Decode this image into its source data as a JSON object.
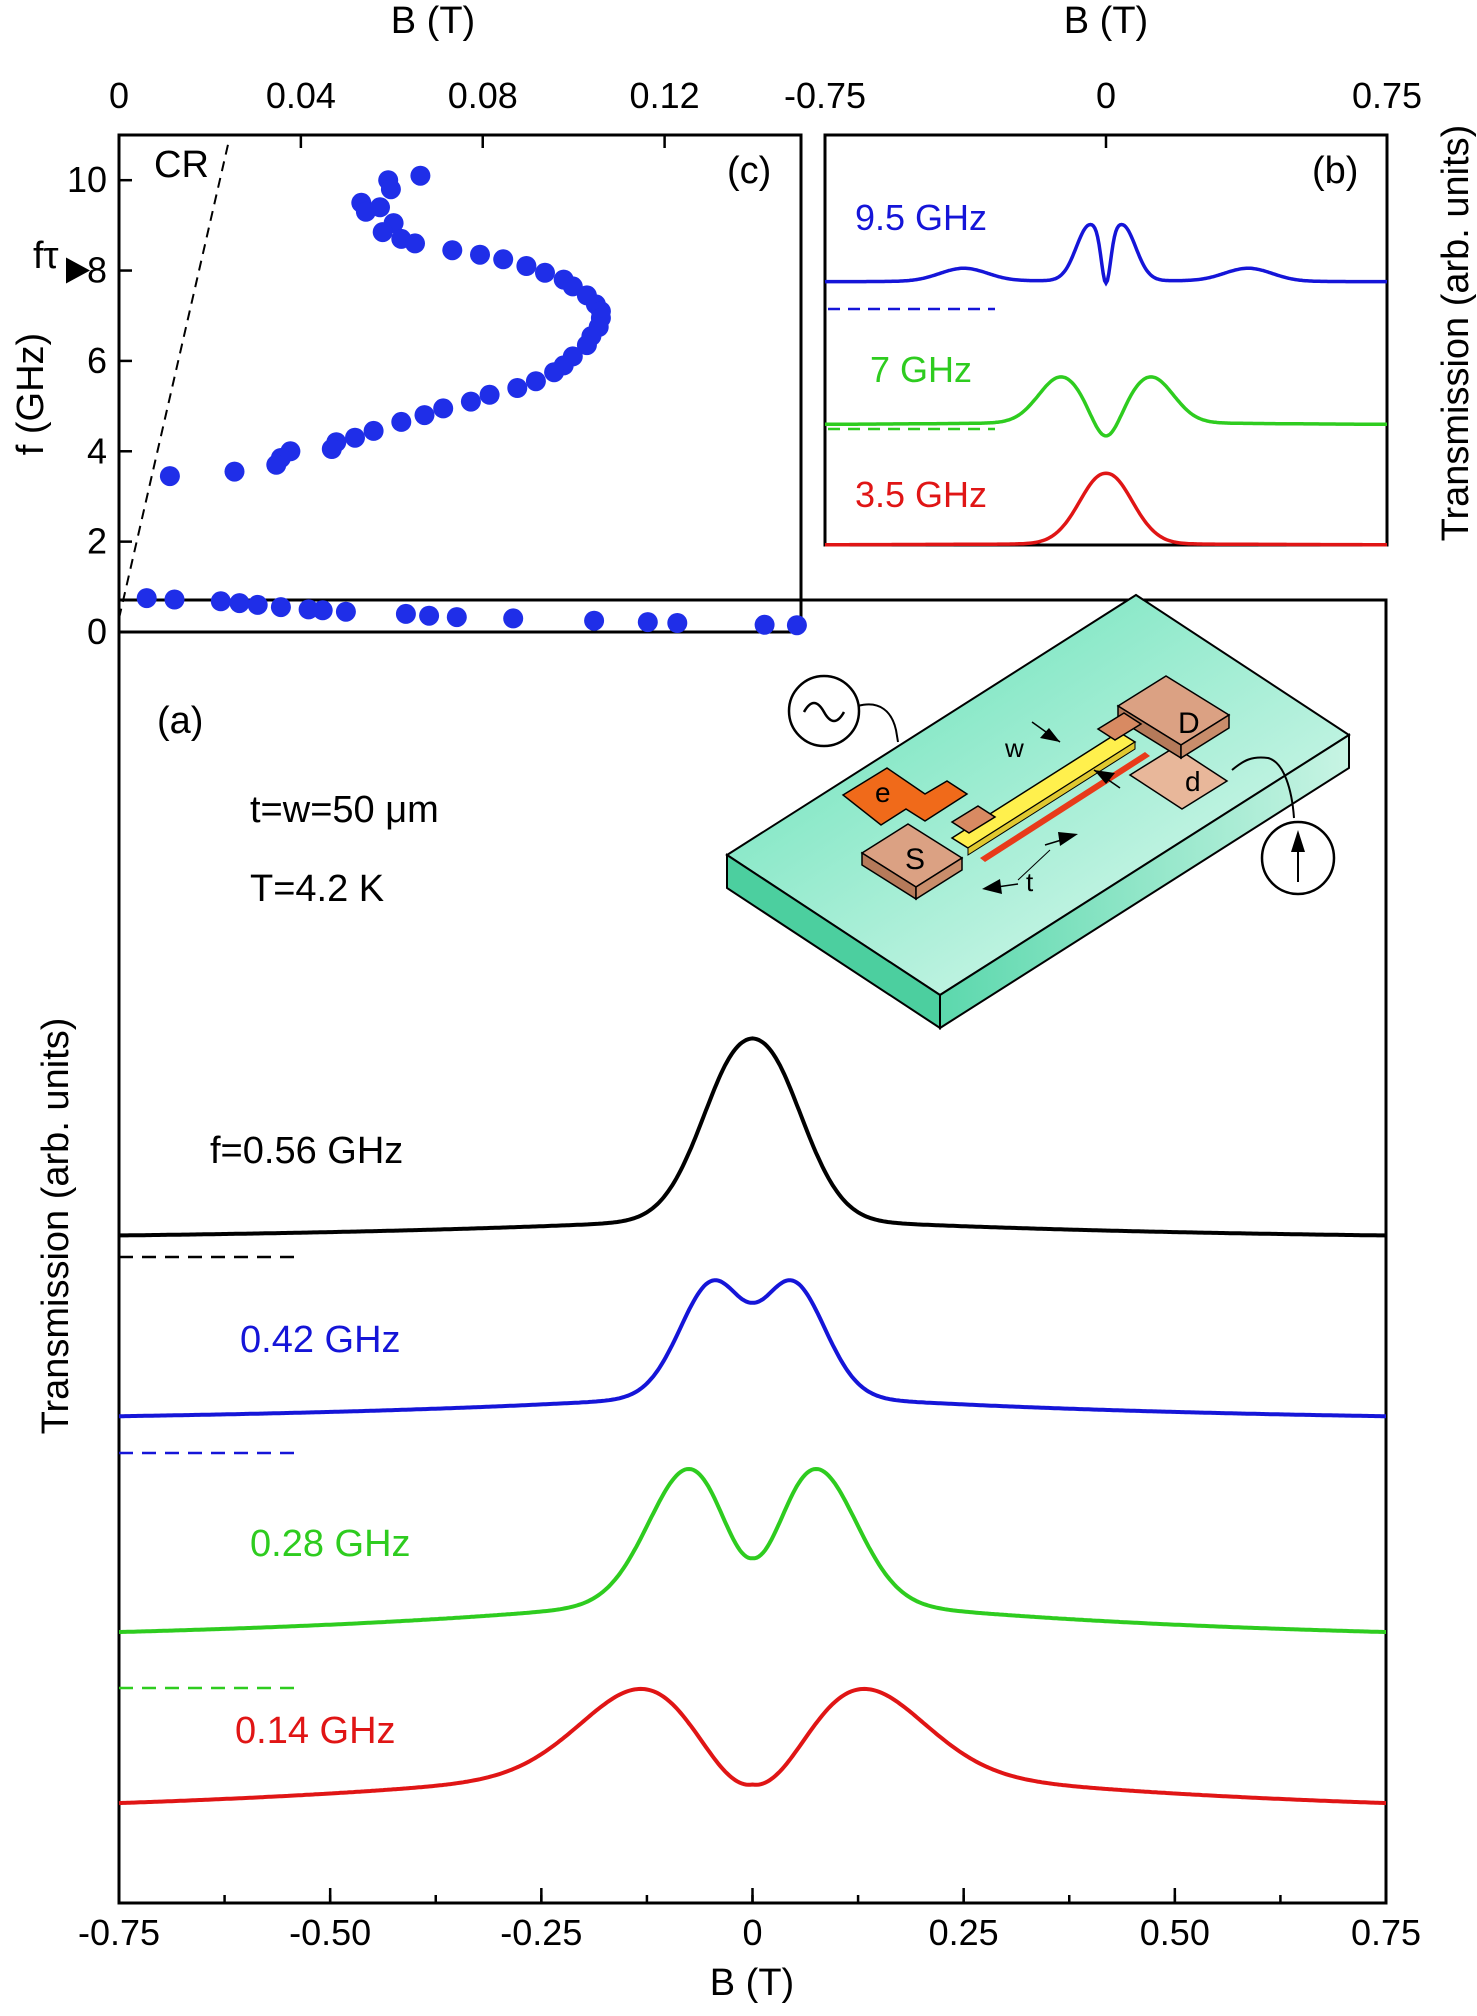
{
  "figure": {
    "panel_a_tag": "(a)",
    "panel_b_tag": "(b)",
    "panel_c_tag": "(c)",
    "conditions_1": "t=w=50 μm",
    "conditions_2": "T=4.2 K"
  },
  "colors": {
    "black": "#000000",
    "blue": "#1515d8",
    "green": "#2ecc1f",
    "red": "#e01515",
    "scatter": "#1f2ee8",
    "substrate_top": "#7fe8c4",
    "substrate_side": "#5cd8ad",
    "contact": "#d9a07f",
    "gate": "#f06a1a",
    "channel": "#fff36a"
  },
  "device": {
    "label_D": "D",
    "label_S": "S",
    "label_d": "d",
    "label_e": "e",
    "label_w": "w",
    "label_t": "t",
    "source_icon": "ac-source-icon",
    "detector_icon": "detector-arrow-icon"
  },
  "chart_data": [
    {
      "type": "line",
      "panel": "(a)",
      "xlabel": "B (T)",
      "ylabel": "Transmission (arb. units)",
      "xlim": [
        -0.75,
        0.75
      ],
      "xticks": [
        "-0.75",
        "-0.50",
        "-0.25",
        "0",
        "0.25",
        "0.50",
        "0.75"
      ],
      "series": [
        {
          "name": "f=0.56 GHz",
          "color": "#000000",
          "baseline": 0.0,
          "wing": 0.4,
          "peak_height": 3.6,
          "peak_pos": 0.025,
          "peak_width": 0.045,
          "dip_depth": 0.25,
          "dip_width": 0.02
        },
        {
          "name": "0.42 GHz",
          "color": "#1515d8",
          "baseline": 0.0,
          "wing": 0.45,
          "peak_height": 3.35,
          "peak_pos": 0.045,
          "peak_width": 0.04,
          "dip_depth": 0.95,
          "dip_width": 0.028
        },
        {
          "name": "0.28 GHz",
          "color": "#2ecc1f",
          "baseline": 0.0,
          "wing": 0.85,
          "peak_height": 4.3,
          "peak_pos": 0.072,
          "peak_width": 0.05,
          "dip_depth": 2.05,
          "dip_width": 0.035
        },
        {
          "name": "0.14 GHz",
          "color": "#e01515",
          "baseline": 0.0,
          "wing": 0.95,
          "peak_height": 2.35,
          "peak_pos": 0.12,
          "peak_width": 0.08,
          "dip_depth": 2.55,
          "dip_width": 0.06
        }
      ]
    },
    {
      "type": "line",
      "panel": "(b)",
      "xlabel": "B (T)",
      "ylabel": "Transmission (arb. units)",
      "xlim": [
        -0.75,
        0.75
      ],
      "xticks": [
        "-0.75",
        "0",
        "0.75"
      ],
      "series": [
        {
          "name": "9.5 GHz",
          "color": "#1515d8",
          "baseline": 0.0,
          "wing": 0.05,
          "peak_height": 2.9,
          "peak_pos": 0.045,
          "peak_width": 0.035,
          "dip_depth": 2.7,
          "dip_width": 0.012,
          "side_bumps": 0.35
        },
        {
          "name": "7 GHz",
          "color": "#2ecc1f",
          "baseline": 0.0,
          "wing": 0.1,
          "peak_height": 2.45,
          "peak_pos": 0.12,
          "peak_width": 0.06,
          "dip_depth": 1.45,
          "dip_width": 0.035
        },
        {
          "name": "3.5 GHz",
          "color": "#e01515",
          "baseline": 0.0,
          "wing": 0.05,
          "peak_height": 2.35,
          "peak_pos": 0.02,
          "peak_width": 0.065,
          "dip_depth": 0.1,
          "dip_width": 0.02
        }
      ]
    },
    {
      "type": "scatter",
      "panel": "(c)",
      "xlabel": "B (T)",
      "ylabel": "f (GHz)",
      "xlim": [
        0,
        0.15
      ],
      "ylim": [
        0,
        11
      ],
      "xticks": [
        "0",
        "0.04",
        "0.08",
        "0.12"
      ],
      "yticks": [
        "0",
        "2",
        "4",
        "6",
        "8",
        "10"
      ],
      "annotation_cr": "CR",
      "annotation_ftau": "fτ",
      "ftau_value": 8,
      "cr_line": [
        [
          0,
          0.3
        ],
        [
          0.024,
          10.8
        ]
      ],
      "points": [
        [
          0.0663,
          10.1
        ],
        [
          0.0592,
          10.0
        ],
        [
          0.0598,
          9.8
        ],
        [
          0.0533,
          9.5
        ],
        [
          0.0574,
          9.4
        ],
        [
          0.0543,
          9.3
        ],
        [
          0.0604,
          9.05
        ],
        [
          0.058,
          8.85
        ],
        [
          0.0621,
          8.7
        ],
        [
          0.0651,
          8.6
        ],
        [
          0.0733,
          8.45
        ],
        [
          0.0794,
          8.35
        ],
        [
          0.0845,
          8.25
        ],
        [
          0.0896,
          8.1
        ],
        [
          0.0937,
          7.95
        ],
        [
          0.0978,
          7.8
        ],
        [
          0.0998,
          7.65
        ],
        [
          0.1029,
          7.45
        ],
        [
          0.1049,
          7.25
        ],
        [
          0.106,
          7.1
        ],
        [
          0.106,
          6.95
        ],
        [
          0.1055,
          6.75
        ],
        [
          0.1039,
          6.55
        ],
        [
          0.1029,
          6.35
        ],
        [
          0.0998,
          6.1
        ],
        [
          0.0978,
          5.9
        ],
        [
          0.0957,
          5.75
        ],
        [
          0.0917,
          5.55
        ],
        [
          0.0876,
          5.4
        ],
        [
          0.0815,
          5.25
        ],
        [
          0.0774,
          5.1
        ],
        [
          0.0713,
          4.95
        ],
        [
          0.0672,
          4.8
        ],
        [
          0.0621,
          4.65
        ],
        [
          0.056,
          4.45
        ],
        [
          0.0519,
          4.3
        ],
        [
          0.0478,
          4.2
        ],
        [
          0.0468,
          4.05
        ],
        [
          0.0377,
          4.0
        ],
        [
          0.0356,
          3.85
        ],
        [
          0.0346,
          3.7
        ],
        [
          0.0254,
          3.55
        ],
        [
          0.0112,
          3.45
        ],
        [
          0.0061,
          0.75
        ],
        [
          0.0122,
          0.72
        ],
        [
          0.0224,
          0.68
        ],
        [
          0.0265,
          0.64
        ],
        [
          0.0305,
          0.6
        ],
        [
          0.0356,
          0.55
        ],
        [
          0.0417,
          0.5
        ],
        [
          0.0448,
          0.48
        ],
        [
          0.0499,
          0.45
        ],
        [
          0.0631,
          0.4
        ],
        [
          0.0682,
          0.36
        ],
        [
          0.0743,
          0.33
        ],
        [
          0.0867,
          0.3
        ],
        [
          0.1045,
          0.25
        ],
        [
          0.1163,
          0.22
        ],
        [
          0.1228,
          0.2
        ],
        [
          0.142,
          0.16
        ],
        [
          0.1491,
          0.15
        ]
      ]
    }
  ]
}
